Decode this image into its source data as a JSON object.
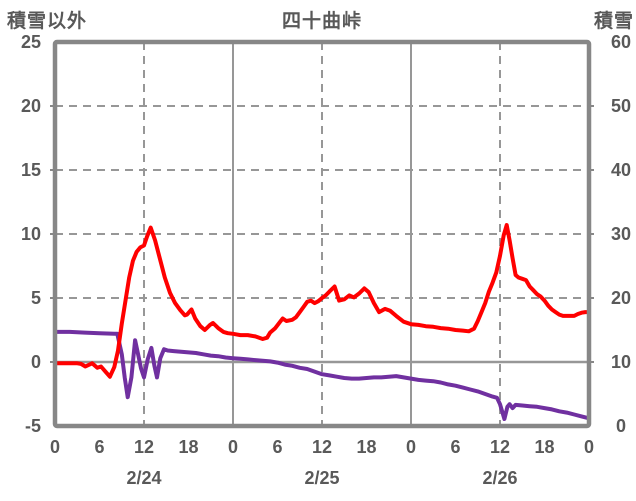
{
  "header": {
    "left_axis_title": "積雪以外",
    "title": "四十曲峠",
    "right_axis_title": "積雪"
  },
  "colors": {
    "text": "#595959",
    "frame": "#878787",
    "gridline": "#979797",
    "red_series": "#ff0000",
    "purple_series": "#7030a0",
    "background": "#ffffff"
  },
  "chart_data": {
    "type": "line",
    "title": "四十曲峠",
    "x": {
      "unit": "hour",
      "range": [
        0,
        72
      ],
      "tick_hours": [
        0,
        6,
        12,
        18,
        24,
        30,
        36,
        42,
        48,
        54,
        60,
        66,
        72
      ],
      "tick_labels": [
        "0",
        "6",
        "12",
        "18",
        "0",
        "6",
        "12",
        "18",
        "0",
        "6",
        "12",
        "18",
        "0"
      ],
      "date_labels": [
        {
          "label": "2/24",
          "hour": 12
        },
        {
          "label": "2/25",
          "hour": 36
        },
        {
          "label": "2/26",
          "hour": 60
        }
      ]
    },
    "left_axis": {
      "label": "積雪以外",
      "range": [
        -5,
        25
      ],
      "ticks": [
        25,
        20,
        15,
        10,
        5,
        0,
        -5
      ]
    },
    "right_axis": {
      "label": "積雪",
      "range": [
        0,
        60
      ],
      "ticks": [
        60,
        50,
        40,
        30,
        20,
        10,
        0
      ]
    },
    "gridlines": {
      "vertical_dashed_hours": [
        12,
        36,
        60
      ],
      "vertical_solid_hours": [
        24,
        48
      ],
      "horizontal_dashed_left_values": [
        20,
        15,
        10,
        5
      ],
      "horizontal_solid_left_values": [
        0
      ]
    },
    "legend": "none",
    "series": [
      {
        "name": "積雪",
        "axis": "right",
        "color": "#7030a0",
        "points": [
          [
            0,
            14.7
          ],
          [
            2,
            14.7
          ],
          [
            4,
            14.6
          ],
          [
            6,
            14.5
          ],
          [
            8,
            14.4
          ],
          [
            8.4,
            14.4
          ],
          [
            9,
            11.2
          ],
          [
            9.4,
            7.6
          ],
          [
            9.8,
            4.5
          ],
          [
            10.3,
            7.6
          ],
          [
            10.8,
            13.4
          ],
          [
            11.2,
            11.2
          ],
          [
            11.6,
            9.0
          ],
          [
            12.0,
            7.6
          ],
          [
            12.5,
            10.4
          ],
          [
            13.0,
            12.2
          ],
          [
            13.4,
            9.4
          ],
          [
            13.75,
            7.6
          ],
          [
            14.2,
            10.6
          ],
          [
            14.7,
            12.0
          ],
          [
            15.2,
            11.8
          ],
          [
            16,
            11.7
          ],
          [
            17,
            11.6
          ],
          [
            18,
            11.5
          ],
          [
            19,
            11.4
          ],
          [
            20,
            11.2
          ],
          [
            21,
            11.0
          ],
          [
            22,
            10.9
          ],
          [
            23,
            10.7
          ],
          [
            24,
            10.6
          ],
          [
            25,
            10.5
          ],
          [
            26,
            10.4
          ],
          [
            27,
            10.3
          ],
          [
            28,
            10.2
          ],
          [
            29,
            10.1
          ],
          [
            30,
            9.9
          ],
          [
            31,
            9.6
          ],
          [
            32,
            9.4
          ],
          [
            33,
            9.1
          ],
          [
            34,
            8.9
          ],
          [
            35,
            8.5
          ],
          [
            36,
            8.1
          ],
          [
            37,
            7.9
          ],
          [
            38,
            7.7
          ],
          [
            39,
            7.5
          ],
          [
            40,
            7.4
          ],
          [
            41,
            7.4
          ],
          [
            42,
            7.5
          ],
          [
            43,
            7.6
          ],
          [
            44,
            7.6
          ],
          [
            45,
            7.7
          ],
          [
            46,
            7.8
          ],
          [
            47,
            7.6
          ],
          [
            48,
            7.4
          ],
          [
            49,
            7.2
          ],
          [
            50,
            7.1
          ],
          [
            51,
            7.0
          ],
          [
            52,
            6.8
          ],
          [
            53,
            6.5
          ],
          [
            54,
            6.3
          ],
          [
            55,
            6.0
          ],
          [
            56,
            5.7
          ],
          [
            57,
            5.4
          ],
          [
            58,
            5.0
          ],
          [
            59,
            4.6
          ],
          [
            59.6,
            4.4
          ],
          [
            60.0,
            3.4
          ],
          [
            60.6,
            1.1
          ],
          [
            61.0,
            3.0
          ],
          [
            61.3,
            3.4
          ],
          [
            61.7,
            2.8
          ],
          [
            62.1,
            3.3
          ],
          [
            63,
            3.2
          ],
          [
            64,
            3.1
          ],
          [
            65,
            3.0
          ],
          [
            66,
            2.8
          ],
          [
            67,
            2.6
          ],
          [
            68,
            2.3
          ],
          [
            69,
            2.1
          ],
          [
            70,
            1.8
          ],
          [
            71,
            1.5
          ],
          [
            72,
            1.2
          ]
        ]
      },
      {
        "name": "積雪以外",
        "axis": "left",
        "color": "#ff0000",
        "points": [
          [
            0,
            -0.1
          ],
          [
            1,
            -0.1
          ],
          [
            2,
            -0.1
          ],
          [
            3,
            -0.1
          ],
          [
            3.5,
            -0.15
          ],
          [
            4.1,
            -0.35
          ],
          [
            5,
            -0.1
          ],
          [
            5.7,
            -0.45
          ],
          [
            6.2,
            -0.35
          ],
          [
            6.8,
            -0.75
          ],
          [
            7.4,
            -1.15
          ],
          [
            8,
            -0.4
          ],
          [
            8.5,
            0.9
          ],
          [
            9,
            3.0
          ],
          [
            9.5,
            4.8
          ],
          [
            10,
            6.6
          ],
          [
            10.5,
            7.9
          ],
          [
            11,
            8.6
          ],
          [
            11.5,
            8.95
          ],
          [
            12,
            9.1
          ],
          [
            12.4,
            9.8
          ],
          [
            12.9,
            10.5
          ],
          [
            13.5,
            9.5
          ],
          [
            13.9,
            8.6
          ],
          [
            14.4,
            7.5
          ],
          [
            14.8,
            6.6
          ],
          [
            15.5,
            5.4
          ],
          [
            16.2,
            4.6
          ],
          [
            16.9,
            4.05
          ],
          [
            17.5,
            3.65
          ],
          [
            17.8,
            3.7
          ],
          [
            18.4,
            4.1
          ],
          [
            18.9,
            3.4
          ],
          [
            19.6,
            2.8
          ],
          [
            20.2,
            2.5
          ],
          [
            20.9,
            2.9
          ],
          [
            21.3,
            3.05
          ],
          [
            22,
            2.65
          ],
          [
            22.7,
            2.35
          ],
          [
            23.3,
            2.25
          ],
          [
            24,
            2.2
          ],
          [
            25,
            2.1
          ],
          [
            26,
            2.1
          ],
          [
            27,
            2.0
          ],
          [
            28,
            1.8
          ],
          [
            28.6,
            1.9
          ],
          [
            29,
            2.3
          ],
          [
            29.7,
            2.65
          ],
          [
            30.3,
            3.1
          ],
          [
            30.7,
            3.4
          ],
          [
            31.2,
            3.2
          ],
          [
            32,
            3.3
          ],
          [
            32.5,
            3.5
          ],
          [
            33,
            3.9
          ],
          [
            33.5,
            4.3
          ],
          [
            34,
            4.7
          ],
          [
            34.5,
            4.8
          ],
          [
            35,
            4.6
          ],
          [
            35.5,
            4.75
          ],
          [
            36,
            5.0
          ],
          [
            36.5,
            5.2
          ],
          [
            37,
            5.5
          ],
          [
            37.7,
            5.9
          ],
          [
            38.3,
            4.8
          ],
          [
            39,
            4.9
          ],
          [
            39.7,
            5.2
          ],
          [
            40.3,
            5.05
          ],
          [
            41,
            5.35
          ],
          [
            41.7,
            5.75
          ],
          [
            42.3,
            5.45
          ],
          [
            43,
            4.6
          ],
          [
            43.7,
            3.9
          ],
          [
            44.5,
            4.15
          ],
          [
            45.2,
            4.0
          ],
          [
            46,
            3.6
          ],
          [
            47,
            3.15
          ],
          [
            48,
            2.95
          ],
          [
            49,
            2.9
          ],
          [
            50,
            2.8
          ],
          [
            51,
            2.75
          ],
          [
            52,
            2.65
          ],
          [
            53,
            2.6
          ],
          [
            54,
            2.5
          ],
          [
            55,
            2.45
          ],
          [
            55.8,
            2.4
          ],
          [
            56.5,
            2.6
          ],
          [
            57,
            3.2
          ],
          [
            57.5,
            3.9
          ],
          [
            58,
            4.6
          ],
          [
            58.5,
            5.5
          ],
          [
            59,
            6.2
          ],
          [
            59.5,
            7.0
          ],
          [
            60,
            8.3
          ],
          [
            60.5,
            9.9
          ],
          [
            60.9,
            10.7
          ],
          [
            61.3,
            9.5
          ],
          [
            61.7,
            8.1
          ],
          [
            62.1,
            6.8
          ],
          [
            62.5,
            6.6
          ],
          [
            63,
            6.5
          ],
          [
            63.5,
            6.4
          ],
          [
            64,
            5.9
          ],
          [
            64.5,
            5.6
          ],
          [
            65,
            5.3
          ],
          [
            65.5,
            5.1
          ],
          [
            66,
            4.8
          ],
          [
            66.5,
            4.4
          ],
          [
            67,
            4.1
          ],
          [
            67.5,
            3.9
          ],
          [
            68,
            3.7
          ],
          [
            68.5,
            3.6
          ],
          [
            69,
            3.6
          ],
          [
            69.5,
            3.6
          ],
          [
            70,
            3.6
          ],
          [
            70.5,
            3.75
          ],
          [
            71,
            3.85
          ],
          [
            71.5,
            3.9
          ],
          [
            72,
            3.9
          ]
        ]
      }
    ]
  }
}
